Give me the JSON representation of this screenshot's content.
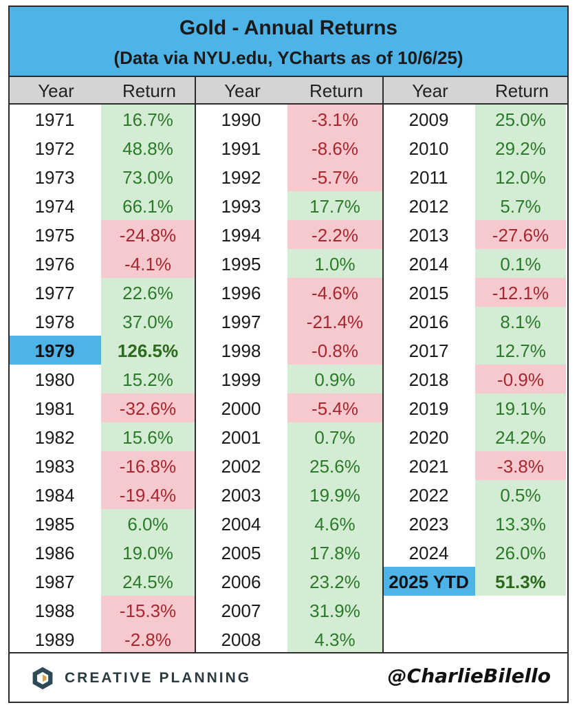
{
  "title": "Gold - Annual Returns",
  "subtitle": "(Data via NYU.edu, YCharts as of 10/6/25)",
  "headers": [
    "Year",
    "Return",
    "Year",
    "Return",
    "Year",
    "Return"
  ],
  "footer": {
    "brand": "CREATIVE PLANNING",
    "handle": "@CharlieBilello"
  },
  "colors": {
    "header_blue": "#4eb3e6",
    "positive_bg": "#d3ecd3",
    "negative_bg": "#f6c9cf"
  },
  "chart_data": {
    "type": "table",
    "title": "Gold - Annual Returns",
    "columns": [
      "Year",
      "Return"
    ],
    "rows": [
      {
        "year": "1971",
        "return": "16.7%",
        "value": 16.7
      },
      {
        "year": "1972",
        "return": "48.8%",
        "value": 48.8
      },
      {
        "year": "1973",
        "return": "73.0%",
        "value": 73.0
      },
      {
        "year": "1974",
        "return": "66.1%",
        "value": 66.1
      },
      {
        "year": "1975",
        "return": "-24.8%",
        "value": -24.8
      },
      {
        "year": "1976",
        "return": "-4.1%",
        "value": -4.1
      },
      {
        "year": "1977",
        "return": "22.6%",
        "value": 22.6
      },
      {
        "year": "1978",
        "return": "37.0%",
        "value": 37.0
      },
      {
        "year": "1979",
        "return": "126.5%",
        "value": 126.5,
        "highlight": true
      },
      {
        "year": "1980",
        "return": "15.2%",
        "value": 15.2
      },
      {
        "year": "1981",
        "return": "-32.6%",
        "value": -32.6
      },
      {
        "year": "1982",
        "return": "15.6%",
        "value": 15.6
      },
      {
        "year": "1983",
        "return": "-16.8%",
        "value": -16.8
      },
      {
        "year": "1984",
        "return": "-19.4%",
        "value": -19.4
      },
      {
        "year": "1985",
        "return": "6.0%",
        "value": 6.0
      },
      {
        "year": "1986",
        "return": "19.0%",
        "value": 19.0
      },
      {
        "year": "1987",
        "return": "24.5%",
        "value": 24.5
      },
      {
        "year": "1988",
        "return": "-15.3%",
        "value": -15.3
      },
      {
        "year": "1989",
        "return": "-2.8%",
        "value": -2.8
      },
      {
        "year": "1990",
        "return": "-3.1%",
        "value": -3.1
      },
      {
        "year": "1991",
        "return": "-8.6%",
        "value": -8.6
      },
      {
        "year": "1992",
        "return": "-5.7%",
        "value": -5.7
      },
      {
        "year": "1993",
        "return": "17.7%",
        "value": 17.7
      },
      {
        "year": "1994",
        "return": "-2.2%",
        "value": -2.2
      },
      {
        "year": "1995",
        "return": "1.0%",
        "value": 1.0
      },
      {
        "year": "1996",
        "return": "-4.6%",
        "value": -4.6
      },
      {
        "year": "1997",
        "return": "-21.4%",
        "value": -21.4
      },
      {
        "year": "1998",
        "return": "-0.8%",
        "value": -0.8
      },
      {
        "year": "1999",
        "return": "0.9%",
        "value": 0.9
      },
      {
        "year": "2000",
        "return": "-5.4%",
        "value": -5.4
      },
      {
        "year": "2001",
        "return": "0.7%",
        "value": 0.7
      },
      {
        "year": "2002",
        "return": "25.6%",
        "value": 25.6
      },
      {
        "year": "2003",
        "return": "19.9%",
        "value": 19.9
      },
      {
        "year": "2004",
        "return": "4.6%",
        "value": 4.6
      },
      {
        "year": "2005",
        "return": "17.8%",
        "value": 17.8
      },
      {
        "year": "2006",
        "return": "23.2%",
        "value": 23.2
      },
      {
        "year": "2007",
        "return": "31.9%",
        "value": 31.9
      },
      {
        "year": "2008",
        "return": "4.3%",
        "value": 4.3
      },
      {
        "year": "2009",
        "return": "25.0%",
        "value": 25.0
      },
      {
        "year": "2010",
        "return": "29.2%",
        "value": 29.2
      },
      {
        "year": "2011",
        "return": "12.0%",
        "value": 12.0
      },
      {
        "year": "2012",
        "return": "5.7%",
        "value": 5.7
      },
      {
        "year": "2013",
        "return": "-27.6%",
        "value": -27.6
      },
      {
        "year": "2014",
        "return": "0.1%",
        "value": 0.1
      },
      {
        "year": "2015",
        "return": "-12.1%",
        "value": -12.1
      },
      {
        "year": "2016",
        "return": "8.1%",
        "value": 8.1
      },
      {
        "year": "2017",
        "return": "12.7%",
        "value": 12.7
      },
      {
        "year": "2018",
        "return": "-0.9%",
        "value": -0.9
      },
      {
        "year": "2019",
        "return": "19.1%",
        "value": 19.1
      },
      {
        "year": "2020",
        "return": "24.2%",
        "value": 24.2
      },
      {
        "year": "2021",
        "return": "-3.8%",
        "value": -3.8
      },
      {
        "year": "2022",
        "return": "0.5%",
        "value": 0.5
      },
      {
        "year": "2023",
        "return": "13.3%",
        "value": 13.3
      },
      {
        "year": "2024",
        "return": "26.0%",
        "value": 26.0
      },
      {
        "year": "2025 YTD",
        "return": "51.3%",
        "value": 51.3,
        "highlight": true
      }
    ]
  }
}
